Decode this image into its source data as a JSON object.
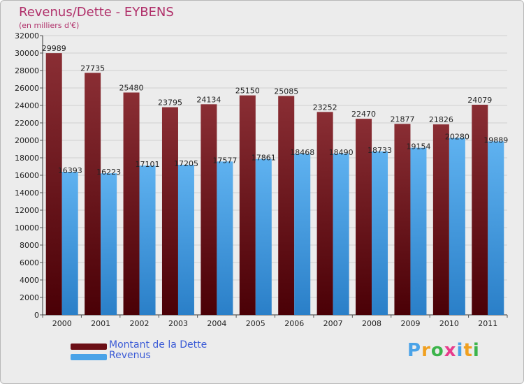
{
  "title": "Revenus/Dette - EYBENS",
  "subtitle": "(en milliers d'€)",
  "chart_data": {
    "type": "bar",
    "categories": [
      "2000",
      "2001",
      "2002",
      "2003",
      "2004",
      "2005",
      "2006",
      "2007",
      "2008",
      "2009",
      "2010",
      "2011"
    ],
    "series": [
      {
        "name": "Montant de la Dette",
        "color": "#7a1f25",
        "values": [
          29989,
          27735,
          25480,
          23795,
          24134,
          25150,
          25085,
          23252,
          22470,
          21877,
          21826,
          24079
        ]
      },
      {
        "name": "Revenus",
        "color": "#4aa3e8",
        "values": [
          16393,
          16223,
          17101,
          17205,
          17577,
          17861,
          18468,
          18490,
          18733,
          19154,
          20280,
          19889
        ]
      }
    ],
    "ylim": [
      0,
      32000
    ],
    "yticks": [
      0,
      2000,
      4000,
      6000,
      8000,
      10000,
      12000,
      14000,
      16000,
      18000,
      20000,
      22000,
      24000,
      26000,
      28000,
      30000,
      32000
    ],
    "grid": true,
    "legend": "bottom-left"
  },
  "legend": {
    "debt_label": "Montant de la Dette",
    "revenue_label": "Revenus",
    "debt_color": "#6b0f16",
    "revenue_color": "#4aa3e8"
  },
  "logo": {
    "letters": [
      "P",
      "r",
      "o",
      "x",
      "i",
      "t",
      "i"
    ],
    "colors": [
      "#4aa3e8",
      "#f0a020",
      "#3cb44b",
      "#e83c8c",
      "#4aa3e8",
      "#f0a020",
      "#3cb44b"
    ]
  }
}
